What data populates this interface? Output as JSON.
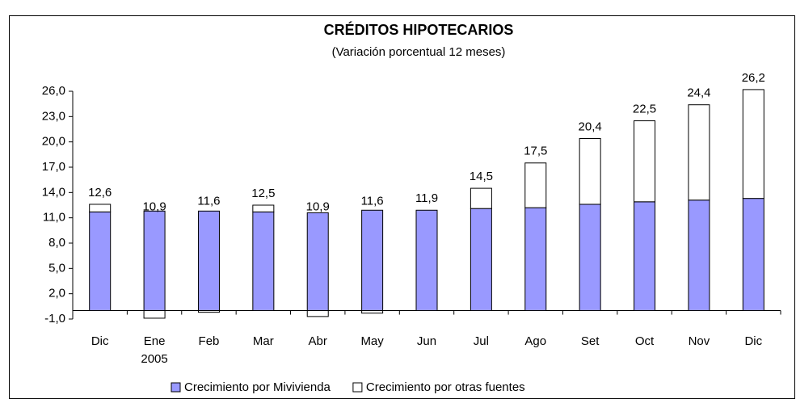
{
  "chart_data": {
    "type": "stacked_bar",
    "title": "CRÉDITOS HIPOTECARIOS",
    "subtitle": "(Variación porcentual 12 meses)",
    "categories": [
      "Dic",
      "Ene",
      "Feb",
      "Mar",
      "Abr",
      "May",
      "Jun",
      "Jul",
      "Ago",
      "Set",
      "Oct",
      "Nov",
      "Dic"
    ],
    "category_sublabels": [
      null,
      "2005",
      null,
      null,
      null,
      null,
      null,
      null,
      null,
      null,
      null,
      null,
      null
    ],
    "series": [
      {
        "name": "Crecimiento por Mivivienda",
        "color": "#9999ff",
        "values": [
          11.7,
          11.8,
          11.8,
          11.7,
          11.6,
          11.9,
          11.9,
          12.1,
          12.2,
          12.6,
          12.9,
          13.1,
          13.3
        ]
      },
      {
        "name": "Crecimiento por otras fuentes",
        "color": "#ffffff",
        "values": [
          0.9,
          -0.9,
          -0.2,
          0.8,
          -0.7,
          -0.3,
          0,
          2.4,
          5.3,
          7.8,
          9.6,
          11.3,
          12.9
        ]
      }
    ],
    "totals": [
      12.6,
      10.9,
      11.6,
      12.5,
      10.9,
      11.6,
      11.9,
      14.5,
      17.5,
      20.4,
      22.5,
      24.4,
      26.2
    ],
    "total_labels": [
      "12,6",
      "10,9",
      "11,6",
      "12,5",
      "10,9",
      "11,6",
      "11,9",
      "14,5",
      "17,5",
      "20,4",
      "22,5",
      "24,4",
      "26,2"
    ],
    "ylim": [
      -1,
      26
    ],
    "yticks": [
      {
        "value": -1,
        "label": "-1,0"
      },
      {
        "value": 2,
        "label": "2,0"
      },
      {
        "value": 5,
        "label": "5,0"
      },
      {
        "value": 8,
        "label": "8,0"
      },
      {
        "value": 11,
        "label": "11,0"
      },
      {
        "value": 14,
        "label": "14,0"
      },
      {
        "value": 17,
        "label": "17,0"
      },
      {
        "value": 20,
        "label": "20,0"
      },
      {
        "value": 23,
        "label": "23,0"
      },
      {
        "value": 26,
        "label": "26,0"
      }
    ],
    "legend": "bottom"
  }
}
